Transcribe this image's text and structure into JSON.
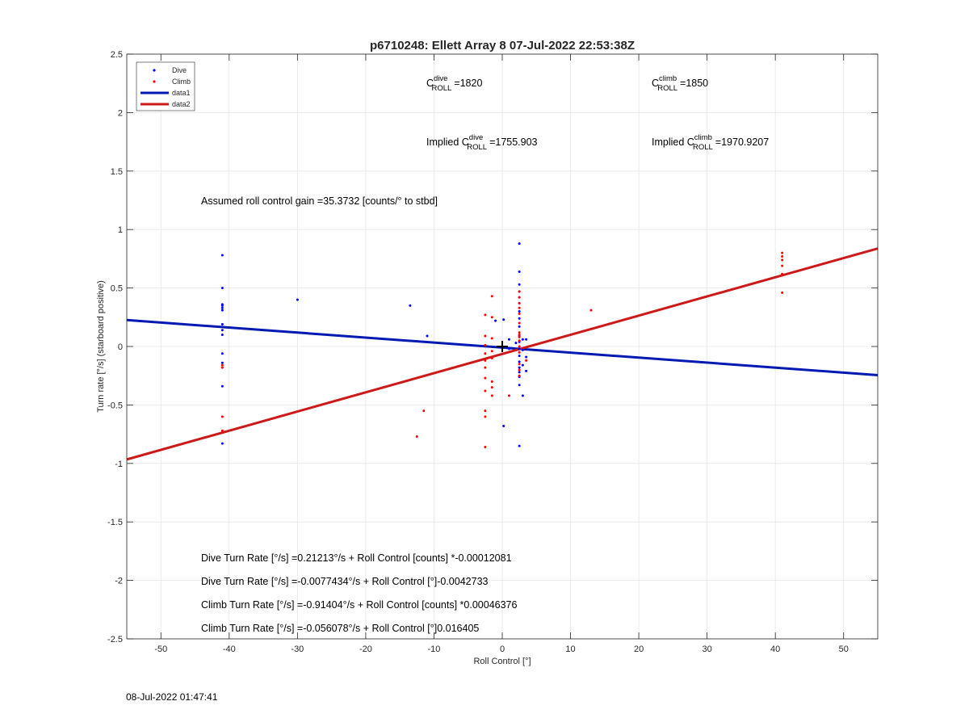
{
  "chart_data": {
    "type": "scatter",
    "title": "p6710248: Ellett Array 8 07-Jul-2022 22:53:38Z",
    "xlabel": "Roll Control [°]",
    "ylabel": "Turn rate [°/s] (starboard positive)",
    "xlim": [
      -55,
      55
    ],
    "ylim": [
      -2.5,
      2.5
    ],
    "xticks": [
      -50,
      -40,
      -30,
      -20,
      -10,
      0,
      10,
      20,
      30,
      40,
      50
    ],
    "yticks": [
      -2.5,
      -2,
      -1.5,
      -1,
      -0.5,
      0,
      0.5,
      1,
      1.5,
      2,
      2.5
    ],
    "xtick_labels": [
      "-50",
      "-40",
      "-30",
      "-20",
      "-10",
      "0",
      "10",
      "20",
      "30",
      "40",
      "50"
    ],
    "ytick_labels": [
      "-2.5",
      "-2",
      "-1.5",
      "-1",
      "-0.5",
      "0",
      "0.5",
      "1",
      "1.5",
      "2",
      "2.5"
    ],
    "grid": true,
    "legend_position": "top-left",
    "colors": {
      "dive": "#0000ff",
      "climb": "#ff0000",
      "data1": "#0019b3",
      "data2": "#cc1a1a"
    },
    "series": [
      {
        "name": "Dive",
        "kind": "scatter",
        "points": [
          [
            -41,
            0.78
          ],
          [
            -41,
            0.5
          ],
          [
            -41,
            0.36
          ],
          [
            -41,
            0.35
          ],
          [
            -41,
            0.33
          ],
          [
            -41,
            0.31
          ],
          [
            -41,
            0.19
          ],
          [
            -41,
            0.14
          ],
          [
            -41,
            0.1
          ],
          [
            -41,
            -0.06
          ],
          [
            -41,
            -0.14
          ],
          [
            -41,
            -0.34
          ],
          [
            -41,
            -0.83
          ],
          [
            -30,
            0.4
          ],
          [
            -13.5,
            0.35
          ],
          [
            -11,
            0.09
          ],
          [
            -1,
            0.22
          ],
          [
            0.2,
            0.23
          ],
          [
            0.2,
            -0.68
          ],
          [
            1,
            0.06
          ],
          [
            1,
            -0.02
          ],
          [
            2,
            0.03
          ],
          [
            2.5,
            0.88
          ],
          [
            2.5,
            0.64
          ],
          [
            2.5,
            0.53
          ],
          [
            2.5,
            0.47
          ],
          [
            2.5,
            0.42
          ],
          [
            2.5,
            0.37
          ],
          [
            2.5,
            0.3
          ],
          [
            2.5,
            0.24
          ],
          [
            2.5,
            0.17
          ],
          [
            2.5,
            0.09
          ],
          [
            2.5,
            0.04
          ],
          [
            2.5,
            -0.02
          ],
          [
            2.5,
            -0.08
          ],
          [
            2.5,
            -0.13
          ],
          [
            2.5,
            -0.18
          ],
          [
            2.5,
            -0.22
          ],
          [
            2.5,
            -0.26
          ],
          [
            2.5,
            -0.33
          ],
          [
            2.5,
            -0.85
          ],
          [
            3,
            0.06
          ],
          [
            3,
            -0.03
          ],
          [
            3,
            -0.16
          ],
          [
            3,
            -0.42
          ],
          [
            3.5,
            0.06
          ],
          [
            3.5,
            -0.09
          ],
          [
            3.5,
            -0.21
          ]
        ]
      },
      {
        "name": "Climb",
        "kind": "scatter",
        "points": [
          [
            -41,
            -0.16
          ],
          [
            -41,
            -0.18
          ],
          [
            -41,
            -0.6
          ],
          [
            -41,
            -0.72
          ],
          [
            -12.5,
            -0.77
          ],
          [
            -11.5,
            -0.55
          ],
          [
            -2.5,
            0.27
          ],
          [
            -2.5,
            0.09
          ],
          [
            -2.5,
            0.01
          ],
          [
            -2.5,
            -0.06
          ],
          [
            -2.5,
            -0.12
          ],
          [
            -2.5,
            -0.18
          ],
          [
            -2.5,
            -0.27
          ],
          [
            -2.5,
            -0.38
          ],
          [
            -2.5,
            -0.55
          ],
          [
            -2.5,
            -0.6
          ],
          [
            -2.5,
            -0.86
          ],
          [
            -1.5,
            0.43
          ],
          [
            -1.5,
            0.25
          ],
          [
            -1.5,
            0.07
          ],
          [
            -1.5,
            -0.04
          ],
          [
            -1.5,
            -0.1
          ],
          [
            -1.5,
            -0.3
          ],
          [
            -1.5,
            -0.35
          ],
          [
            -1.5,
            -0.42
          ],
          [
            1,
            -0.42
          ],
          [
            2.5,
            0.47
          ],
          [
            2.5,
            0.42
          ],
          [
            2.5,
            0.37
          ],
          [
            2.5,
            0.33
          ],
          [
            2.5,
            0.28
          ],
          [
            2.5,
            0.2
          ],
          [
            2.5,
            0.12
          ],
          [
            2.5,
            0.1
          ],
          [
            2.5,
            0.08
          ],
          [
            2.5,
            0.05
          ],
          [
            2.5,
            0.0
          ],
          [
            2.5,
            -0.05
          ],
          [
            2.5,
            -0.15
          ],
          [
            2.5,
            -0.2
          ],
          [
            2.5,
            -0.25
          ],
          [
            3.5,
            -0.12
          ],
          [
            13,
            0.31
          ],
          [
            41,
            0.8
          ],
          [
            41,
            0.77
          ],
          [
            41,
            0.74
          ],
          [
            41,
            0.69
          ],
          [
            41,
            0.62
          ],
          [
            41,
            0.46
          ]
        ]
      },
      {
        "name": "data1",
        "kind": "line",
        "points": [
          [
            -55,
            0.226
          ],
          [
            55,
            -0.245
          ]
        ]
      },
      {
        "name": "data2",
        "kind": "line",
        "points": [
          [
            -55,
            -0.966
          ],
          [
            55,
            0.838
          ]
        ]
      }
    ],
    "marker": {
      "symbol": "+",
      "x": 0,
      "y": 0
    },
    "annotations": {
      "c_roll_dive": {
        "prefix": "C",
        "sup": "dive",
        "sub": "ROLL",
        "value": "=1820"
      },
      "c_roll_climb": {
        "prefix": "C",
        "sup": "climb",
        "sub": "ROLL",
        "value": "=1850"
      },
      "implied_dive": {
        "prefix": "Implied C",
        "sup": "dive",
        "sub": "ROLL",
        "value": "=1755.903"
      },
      "implied_climb": {
        "prefix": "Implied C",
        "sup": "climb",
        "sub": "ROLL",
        "value": "=1970.9207"
      },
      "gain": "Assumed roll control gain =35.3732 [counts/° to stbd]",
      "eq1": "Dive Turn Rate [°/s] =0.21213°/s + Roll Control [counts] *-0.00012081",
      "eq2": "Dive Turn Rate [°/s] =-0.0077434°/s + Roll Control [°]-0.0042733",
      "eq3": "Climb Turn Rate [°/s] =-0.91404°/s + Roll Control [counts] *0.00046376",
      "eq4": "Climb Turn Rate [°/s] =-0.056078°/s + Roll Control [°]0.016405"
    }
  },
  "footer": {
    "printed_date": "08-Jul-2022 01:47:41"
  }
}
